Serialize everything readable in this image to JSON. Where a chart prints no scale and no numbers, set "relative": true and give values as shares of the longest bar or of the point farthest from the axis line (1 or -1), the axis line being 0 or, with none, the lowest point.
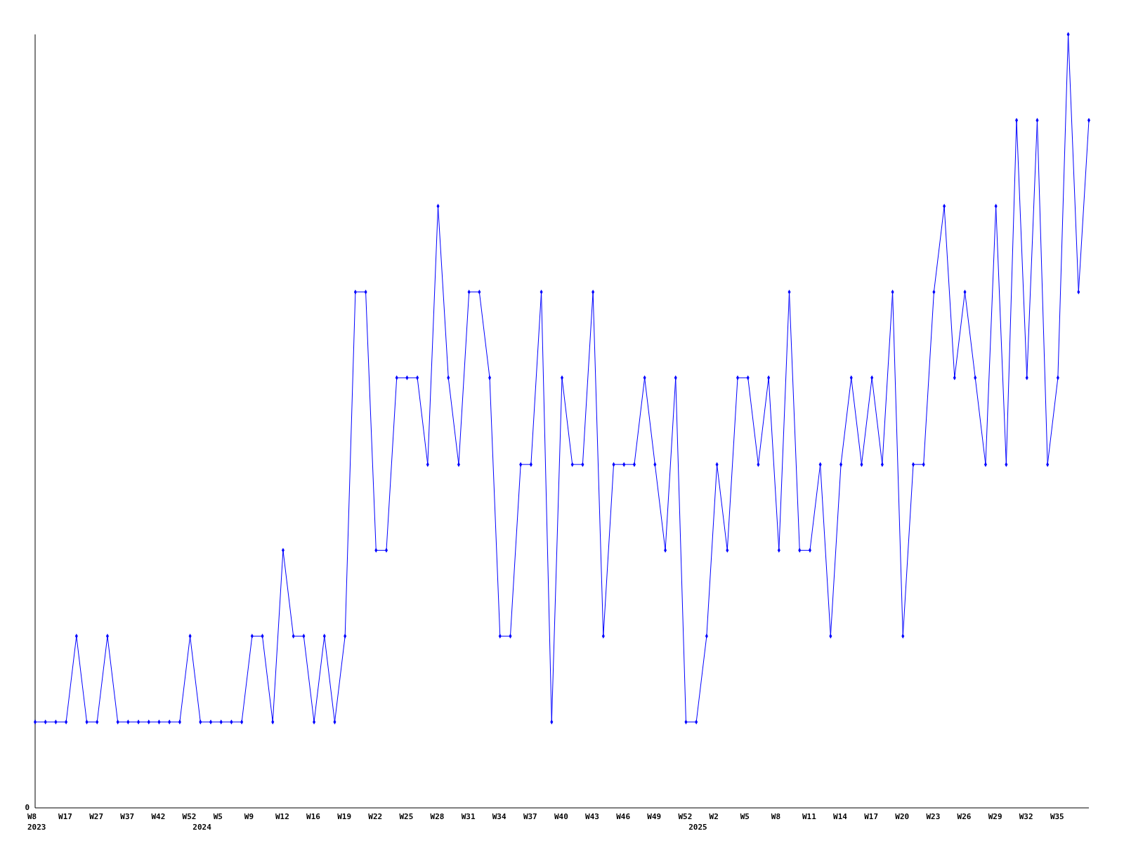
{
  "chart_data": {
    "type": "line",
    "relative": true,
    "marker": "diamond",
    "line_style": "solid",
    "annotations": [
      "0"
    ],
    "categories": [
      "W8\n2023",
      null,
      null,
      "W17",
      null,
      null,
      "W27",
      null,
      null,
      "W37",
      null,
      null,
      "W42",
      null,
      null,
      "W52",
      "\n2024",
      null,
      "W5",
      null,
      null,
      "W9",
      null,
      null,
      "W12",
      null,
      null,
      "W16",
      null,
      null,
      "W19",
      null,
      null,
      "W22",
      null,
      null,
      "W25",
      null,
      null,
      "W28",
      null,
      null,
      "W31",
      null,
      null,
      "W34",
      null,
      null,
      "W37",
      null,
      null,
      "W40",
      null,
      null,
      "W43",
      null,
      null,
      "W46",
      null,
      null,
      "W49",
      null,
      null,
      "W52",
      "\n2025",
      null,
      "W2",
      null,
      null,
      "W5",
      null,
      null,
      "W8",
      null,
      null,
      "W11",
      null,
      null,
      "W14",
      null,
      null,
      "W17",
      null,
      null,
      "W20",
      null,
      null,
      "W23",
      null,
      null,
      "W26",
      null,
      null,
      "W29",
      null,
      null,
      "W32",
      null,
      null,
      "W35",
      null,
      null,
      null
    ],
    "series": [
      {
        "color": "#0000ff",
        "values": [
          0.111,
          0.111,
          0.111,
          0.111,
          0.222,
          0.111,
          0.111,
          0.222,
          0.111,
          0.111,
          0.111,
          0.111,
          0.111,
          0.111,
          0.111,
          0.222,
          0.111,
          0.111,
          0.111,
          0.111,
          0.111,
          0.222,
          0.222,
          0.111,
          0.333,
          0.222,
          0.222,
          0.111,
          0.222,
          0.111,
          0.222,
          0.667,
          0.667,
          0.333,
          0.333,
          0.556,
          0.556,
          0.556,
          0.444,
          0.778,
          0.556,
          0.444,
          0.667,
          0.667,
          0.556,
          0.222,
          0.222,
          0.444,
          0.444,
          0.667,
          0.111,
          0.556,
          0.444,
          0.444,
          0.667,
          0.222,
          0.444,
          0.444,
          0.444,
          0.556,
          0.444,
          0.333,
          0.556,
          0.111,
          0.111,
          0.222,
          0.444,
          0.333,
          0.556,
          0.556,
          0.444,
          0.556,
          0.333,
          0.667,
          0.333,
          0.333,
          0.444,
          0.222,
          0.444,
          0.556,
          0.444,
          0.556,
          0.444,
          0.667,
          0.222,
          0.444,
          0.444,
          0.667,
          0.778,
          0.556,
          0.667,
          0.556,
          0.444,
          0.778,
          0.444,
          0.889,
          0.556,
          0.889,
          0.444,
          0.556,
          1,
          0.667,
          0.889
        ]
      }
    ]
  }
}
